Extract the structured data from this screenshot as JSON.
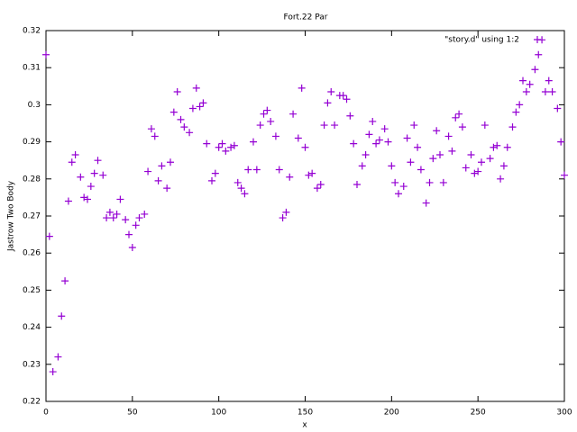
{
  "chart_data": {
    "type": "scatter",
    "title": "Fort.22 Par",
    "xlabel": "x",
    "ylabel": "Jastrow Two Body",
    "xlim": [
      0,
      300
    ],
    "xticks": [
      0,
      50,
      100,
      150,
      200,
      250,
      300
    ],
    "ylim": [
      0.22,
      0.32
    ],
    "yticks": [
      0.22,
      0.23,
      0.24,
      0.25,
      0.26,
      0.27,
      0.28,
      0.29,
      0.3,
      0.31,
      0.32
    ],
    "legend": "top-right",
    "series": [
      {
        "name": "\"story.d\"  using 1:2",
        "color": "#9400d3",
        "marker": "+",
        "x": [
          0,
          2,
          4,
          7,
          9,
          11,
          13,
          15,
          17,
          20,
          22,
          24,
          26,
          28,
          30,
          33,
          35,
          37,
          39,
          41,
          43,
          46,
          48,
          50,
          52,
          54,
          57,
          59,
          61,
          63,
          65,
          67,
          70,
          72,
          74,
          76,
          78,
          80,
          83,
          85,
          87,
          89,
          91,
          93,
          96,
          98,
          100,
          102,
          104,
          107,
          109,
          111,
          113,
          115,
          117,
          120,
          122,
          124,
          126,
          128,
          130,
          133,
          135,
          137,
          139,
          141,
          143,
          146,
          148,
          150,
          152,
          154,
          157,
          159,
          161,
          163,
          165,
          167,
          170,
          172,
          174,
          176,
          178,
          180,
          183,
          185,
          187,
          189,
          191,
          193,
          196,
          198,
          200,
          202,
          204,
          207,
          209,
          211,
          213,
          215,
          217,
          220,
          222,
          224,
          226,
          228,
          230,
          233,
          235,
          237,
          239,
          241,
          243,
          246,
          248,
          250,
          252,
          254,
          257,
          259,
          261,
          263,
          265,
          267,
          270,
          272,
          274,
          276,
          278,
          280,
          283,
          285,
          287,
          289,
          291,
          293,
          296,
          298,
          300
        ],
        "values": [
          0.3135,
          0.2645,
          0.228,
          0.232,
          0.243,
          0.2525,
          0.274,
          0.2845,
          0.2865,
          0.2805,
          0.275,
          0.2745,
          0.278,
          0.2815,
          0.285,
          0.281,
          0.2695,
          0.271,
          0.2695,
          0.2705,
          0.2745,
          0.269,
          0.265,
          0.2615,
          0.2675,
          0.2695,
          0.2705,
          0.282,
          0.2935,
          0.2915,
          0.2795,
          0.2835,
          0.2775,
          0.2845,
          0.298,
          0.3035,
          0.296,
          0.294,
          0.2925,
          0.299,
          0.3045,
          0.2995,
          0.3005,
          0.2895,
          0.2795,
          0.2815,
          0.2885,
          0.2895,
          0.2875,
          0.2885,
          0.289,
          0.279,
          0.2775,
          0.276,
          0.2825,
          0.29,
          0.2825,
          0.2945,
          0.2975,
          0.2985,
          0.2955,
          0.2915,
          0.2825,
          0.2695,
          0.271,
          0.2805,
          0.2975,
          0.291,
          0.3045,
          0.2885,
          0.281,
          0.2815,
          0.2775,
          0.2785,
          0.2945,
          0.3005,
          0.3035,
          0.2945,
          0.3025,
          0.3025,
          0.3015,
          0.297,
          0.2895,
          0.2785,
          0.2835,
          0.2865,
          0.292,
          0.2955,
          0.2895,
          0.2905,
          0.2935,
          0.29,
          0.2835,
          0.279,
          0.276,
          0.278,
          0.291,
          0.2845,
          0.2945,
          0.2885,
          0.2825,
          0.2735,
          0.279,
          0.2855,
          0.293,
          0.2865,
          0.279,
          0.2915,
          0.2875,
          0.2965,
          0.2975,
          0.294,
          0.283,
          0.2865,
          0.2815,
          0.282,
          0.2845,
          0.2945,
          0.2855,
          0.2885,
          0.289,
          0.28,
          0.2835,
          0.2885,
          0.294,
          0.298,
          0.3,
          0.3065,
          0.3035,
          0.3055,
          0.3095,
          0.3135,
          0.3175,
          0.3035,
          0.3065,
          0.3035,
          0.299,
          0.29,
          0.281
        ]
      }
    ]
  }
}
